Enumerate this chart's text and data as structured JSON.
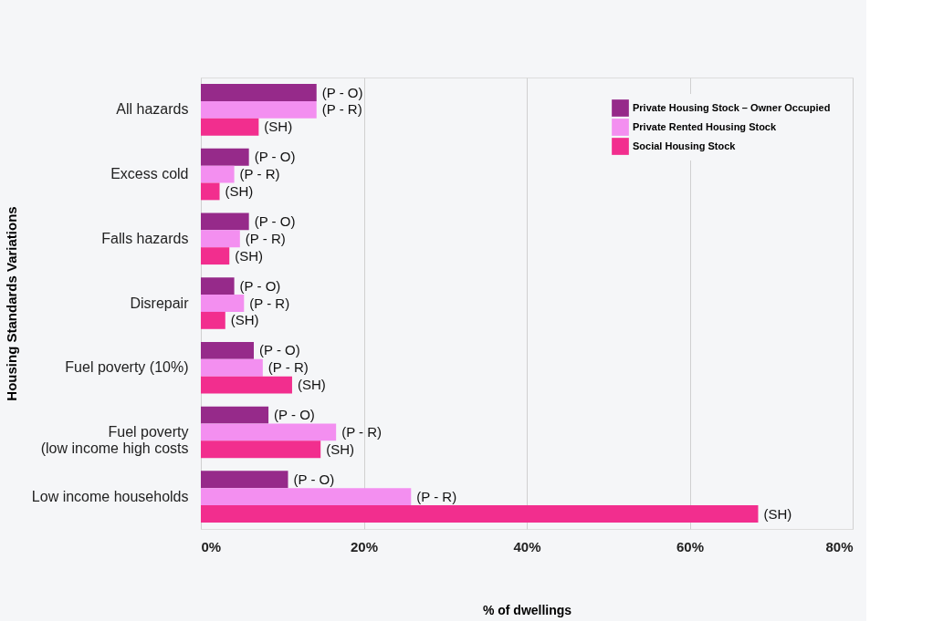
{
  "chart_data": {
    "type": "bar",
    "orientation": "horizontal",
    "ylabel": "Housing Standards Variations",
    "xlabel": "% of dwellings",
    "categories": [
      "All hazards",
      "Excess cold",
      "Falls hazards",
      "Disrepair",
      "Fuel poverty (10%)",
      "Fuel poverty\n(low income high costs",
      "Low income households"
    ],
    "series": [
      {
        "name": "Private Housing Stock – Owner Occupied",
        "color": "#962a8a",
        "values": [
          14.2,
          5.9,
          5.9,
          4.1,
          6.5,
          8.3,
          10.7
        ],
        "value_labels": [
          "(P - O)",
          "(P - O)",
          "(P - O)",
          "(P - O)",
          "(P - O)",
          "(P - O)",
          "(P - O)"
        ]
      },
      {
        "name": "Private Rented Housing Stock",
        "color": "#f38ff0",
        "values": [
          14.2,
          4.1,
          4.8,
          5.3,
          7.6,
          16.6,
          25.8
        ],
        "value_labels": [
          "(P - R)",
          "(P - R)",
          "(P - R)",
          "(P - R)",
          "(P - R)",
          "(P - R)",
          "(P - R)"
        ]
      },
      {
        "name": "Social Housing Stock",
        "color": "#f22e8e",
        "values": [
          7.1,
          2.3,
          3.5,
          3.0,
          11.2,
          14.7,
          68.4
        ],
        "value_labels": [
          "(SH)",
          "(SH)",
          "(SH)",
          "(SH)",
          "(SH)",
          "(SH)",
          "(SH)"
        ]
      }
    ],
    "xlim": [
      0,
      80
    ],
    "xticks": [
      {
        "value": 0,
        "label": "0%"
      },
      {
        "value": 20,
        "label": "20%"
      },
      {
        "value": 40,
        "label": "40%"
      },
      {
        "value": 60,
        "label": "60%"
      },
      {
        "value": 80,
        "label": "80%"
      }
    ],
    "grid": "x",
    "legend": "top right"
  }
}
